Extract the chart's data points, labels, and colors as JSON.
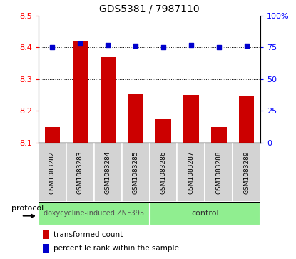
{
  "title": "GDS5381 / 7987110",
  "samples": [
    "GSM1083282",
    "GSM1083283",
    "GSM1083284",
    "GSM1083285",
    "GSM1083286",
    "GSM1083287",
    "GSM1083288",
    "GSM1083289"
  ],
  "transformed_counts": [
    8.148,
    8.42,
    8.37,
    8.253,
    8.173,
    8.25,
    8.148,
    8.248
  ],
  "percentile_ranks": [
    75,
    78,
    77,
    76,
    75,
    77,
    75,
    76
  ],
  "ylim_left": [
    8.1,
    8.5
  ],
  "ylim_right": [
    0,
    100
  ],
  "yticks_left": [
    8.1,
    8.2,
    8.3,
    8.4,
    8.5
  ],
  "yticks_right": [
    0,
    25,
    50,
    75,
    100
  ],
  "bar_color": "#cc0000",
  "dot_color": "#0000cc",
  "group1_label": "doxycycline-induced ZNF395",
  "group2_label": "control",
  "group1_count": 4,
  "group2_count": 4,
  "protocol_label": "protocol",
  "legend_bar_label": "transformed count",
  "legend_dot_label": "percentile rank within the sample",
  "tick_label_area_color": "#d3d3d3",
  "protocol_area_color": "#90ee90",
  "title_fontsize": 10,
  "axis_label_fontsize": 8,
  "sample_label_fontsize": 6.5,
  "protocol_text_fontsize": 7,
  "legend_fontsize": 7.5
}
